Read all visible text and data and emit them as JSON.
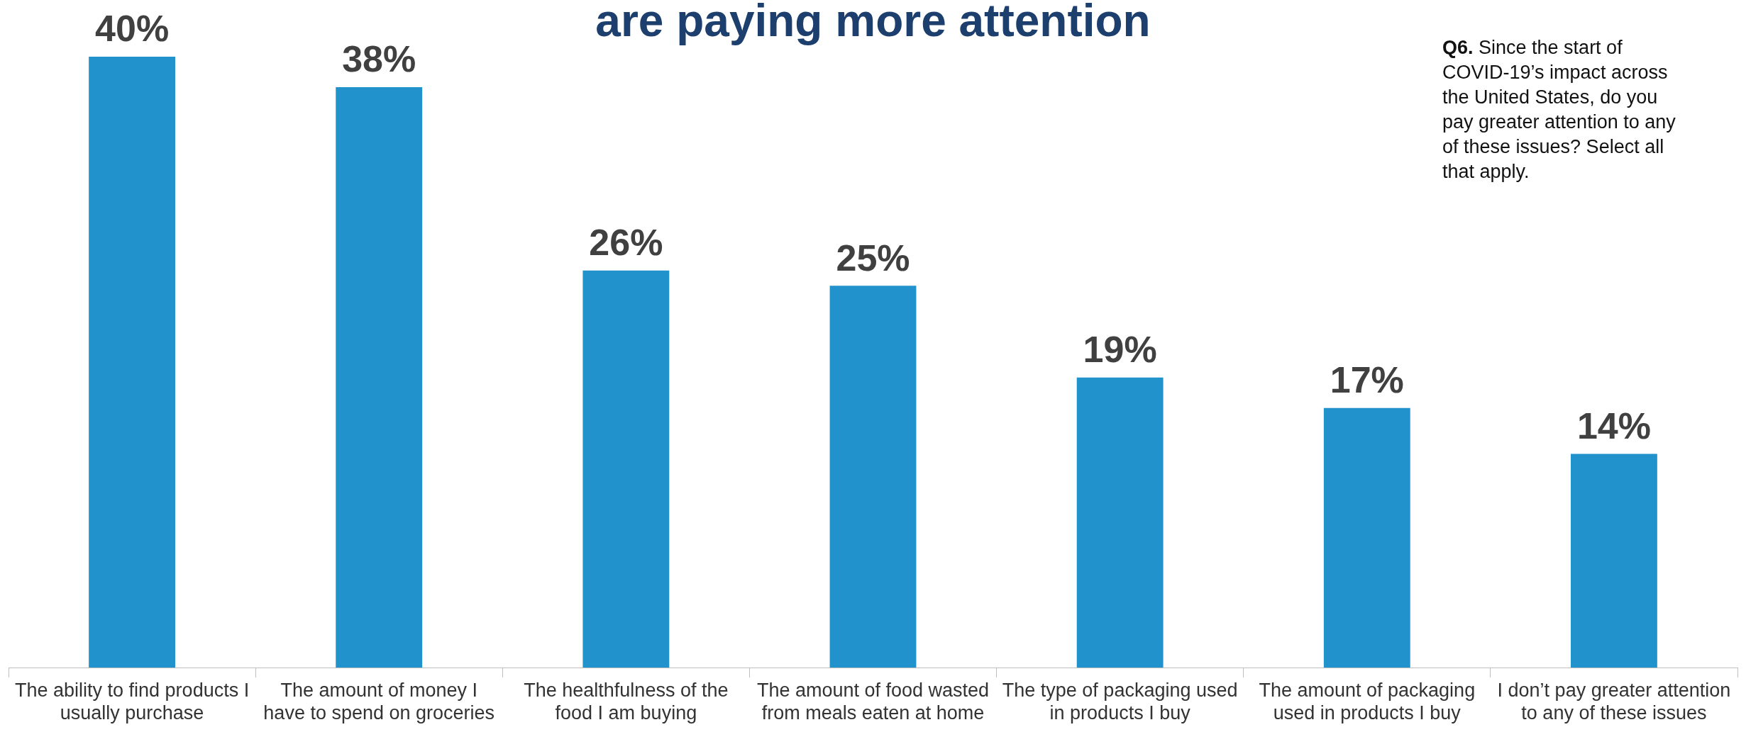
{
  "chart_data": {
    "type": "bar",
    "title": "are paying more attention",
    "categories": [
      "The ability to find products I usually purchase",
      "The amount of money I have to spend on groceries",
      "The healthfulness of the food I am buying",
      "The amount of food wasted from meals eaten at home",
      "The type of packaging used in products I buy",
      "The amount of packaging used in products I buy",
      "I don’t pay greater attention to any of these issues"
    ],
    "values": [
      40,
      38,
      26,
      25,
      19,
      17,
      14
    ],
    "value_labels": [
      "40%",
      "38%",
      "26%",
      "25%",
      "19%",
      "17%",
      "14%"
    ],
    "color": "#2192cb",
    "ylim": [
      0,
      40
    ],
    "tick_labels": "x",
    "annotations": [
      "Q6. Since the start of COVID-19’s impact across the United States, do you pay greater attention to any of these issues? Select all that apply."
    ]
  }
}
